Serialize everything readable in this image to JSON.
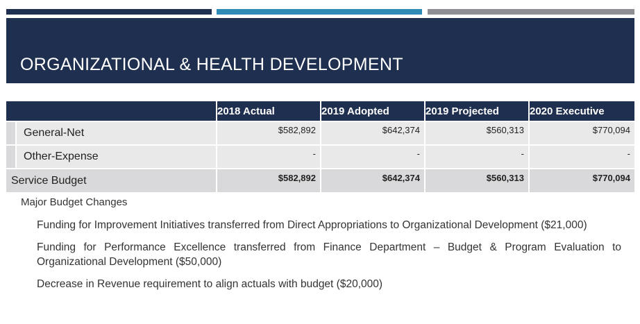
{
  "title": "ORGANIZATIONAL & HEALTH DEVELOPMENT",
  "colors": {
    "navy": "#1f2f4f",
    "teal": "#2e8bb5",
    "gray": "#8e8f93"
  },
  "table": {
    "columns": [
      "2018 Actual",
      "2019 Adopted",
      "2019 Projected",
      "2020 Executive"
    ],
    "rows": [
      {
        "label": "General-Net",
        "values": [
          "$582,892",
          "$642,374",
          "$560,313",
          "$770,094"
        ]
      },
      {
        "label": "Other-Expense",
        "values": [
          "-",
          "-",
          "-",
          "-"
        ]
      }
    ],
    "total": {
      "label": "Service Budget",
      "values": [
        "$582,892",
        "$642,374",
        "$560,313",
        "$770,094"
      ]
    }
  },
  "changes": {
    "heading": "Major Budget Changes",
    "items": [
      "Funding for Improvement Initiatives transferred from Direct Appropriations to Organizational Development ($21,000)",
      "Funding for Performance Excellence transferred from Finance Department – Budget & Program Evaluation to Organizational Development ($50,000)",
      "Decrease in Revenue requirement to align actuals with budget ($20,000)"
    ]
  }
}
